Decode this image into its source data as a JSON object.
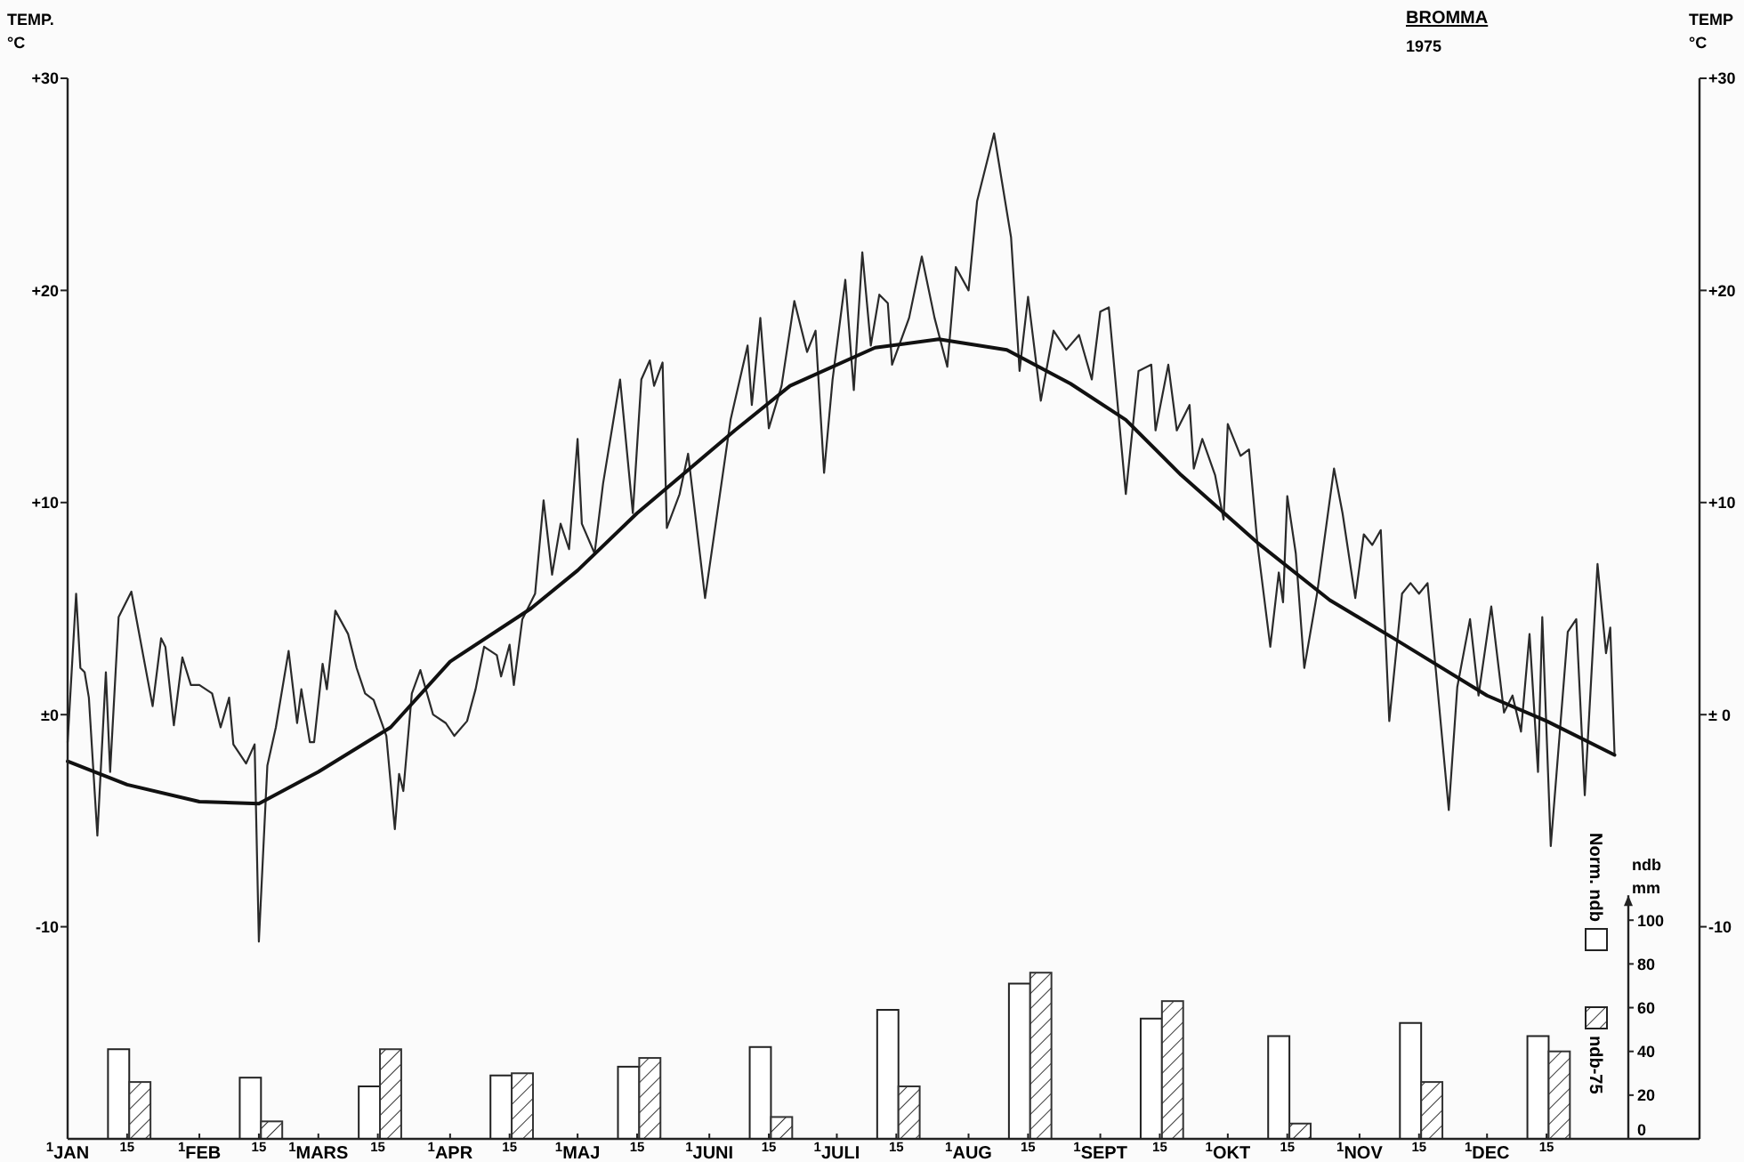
{
  "chart_data": {
    "type": "line",
    "title": "BROMMA",
    "subtitle": "1975",
    "ylabel": "TEMP. °C",
    "y2label": "TEMP °C",
    "y3label": "ndb mm",
    "xlim": [
      "1975-01-01",
      "1976-01-20"
    ],
    "xticks": [
      {
        "value": "1975-01-01",
        "label": "$^{1}$JAN"
      },
      {
        "value": "1975-01-15",
        "label": "$^{15}$"
      },
      {
        "value": "1975-02-01",
        "label": "$^{1}$FEB"
      },
      {
        "value": "1975-02-15",
        "label": "$^{15}$"
      },
      {
        "value": "1975-03-01",
        "label": "$^{1}$MARS"
      },
      {
        "value": "1975-03-15",
        "label": "$^{15}$"
      },
      {
        "value": "1975-04-01",
        "label": "$^{1}$APR"
      },
      {
        "value": "1975-04-15",
        "label": "$^{15}$"
      },
      {
        "value": "1975-05-01",
        "label": "$^{1}$MAJ"
      },
      {
        "value": "1975-05-15",
        "label": "$^{15}$"
      },
      {
        "value": "1975-06-01",
        "label": "$^{1}$JUNI"
      },
      {
        "value": "1975-06-15",
        "label": "$^{15}$"
      },
      {
        "value": "1975-07-01",
        "label": "$^{1}$JULI"
      },
      {
        "value": "1975-07-15",
        "label": "$^{15}$"
      },
      {
        "value": "1975-08-01",
        "label": "$^{1}$AUG"
      },
      {
        "value": "1975-08-15",
        "label": "$^{15}$"
      },
      {
        "value": "1975-09-01",
        "label": "$^{1}$SEPT"
      },
      {
        "value": "1975-09-15",
        "label": "$^{15}$"
      },
      {
        "value": "1975-10-01",
        "label": "$^{1}$OKT"
      },
      {
        "value": "1975-10-15",
        "label": "$^{15}$"
      },
      {
        "value": "1975-11-01",
        "label": "$^{1}$NOV"
      },
      {
        "value": "1975-11-15",
        "label": "$^{15}$"
      },
      {
        "value": "1975-12-01",
        "label": "$^{1}$DEC"
      },
      {
        "value": "1975-12-15",
        "label": "$^{15}$"
      }
    ],
    "ylim": [
      -20,
      30
    ],
    "yticks": [
      {
        "value": -10,
        "label": "-10"
      },
      {
        "value": 0,
        "label": "±0"
      },
      {
        "value": 10,
        "label": "+10"
      },
      {
        "value": 20,
        "label": "+20"
      },
      {
        "value": 30,
        "label": "+30"
      }
    ],
    "y2lim": [
      -20,
      30
    ],
    "y2ticks": [
      {
        "value": -10,
        "label": "-10"
      },
      {
        "value": 0,
        "label": "± 0"
      },
      {
        "value": 10,
        "label": "+10"
      },
      {
        "value": 20,
        "label": "+20"
      },
      {
        "value": 30,
        "label": "+30"
      }
    ],
    "y3lim": [
      0,
      485
    ],
    "y3ticks": [
      0,
      20,
      40,
      60,
      80,
      100
    ],
    "legend": "bottom right",
    "series": [
      {
        "color": "#2a2a2a",
        "x": [
          "1975-01-01",
          "1975-01-03",
          "1975-01-04",
          "1975-01-05",
          "1975-01-06",
          "1975-01-08",
          "1975-01-10",
          "1975-01-11",
          "1975-01-13",
          "1975-01-16",
          "1975-01-21",
          "1975-01-23",
          "1975-01-24",
          "1975-01-26",
          "1975-01-28",
          "1975-01-30",
          "1975-02-01",
          "1975-02-04",
          "1975-02-06",
          "1975-02-08",
          "1975-02-09",
          "1975-02-12",
          "1975-02-14",
          "1975-02-15",
          "1975-02-17",
          "1975-02-19",
          "1975-02-22",
          "1975-02-24",
          "1975-02-25",
          "1975-02-27",
          "1975-02-28",
          "1975-03-02",
          "1975-03-03",
          "1975-03-05",
          "1975-03-08",
          "1975-03-10",
          "1975-03-12",
          "1975-03-14",
          "1975-03-17",
          "1975-03-19",
          "1975-03-20",
          "1975-03-21",
          "1975-03-23",
          "1975-03-25",
          "1975-03-28",
          "1975-03-31",
          "1975-04-02",
          "1975-04-05",
          "1975-04-07",
          "1975-04-09",
          "1975-04-12",
          "1975-04-13",
          "1975-04-15",
          "1975-04-16",
          "1975-04-18",
          "1975-04-21",
          "1975-04-23",
          "1975-04-25",
          "1975-04-27",
          "1975-04-29",
          "1975-05-01",
          "1975-05-02",
          "1975-05-05",
          "1975-05-07",
          "1975-05-11",
          "1975-05-14",
          "1975-05-16",
          "1975-05-18",
          "1975-05-19",
          "1975-05-21",
          "1975-05-22",
          "1975-05-25",
          "1975-05-27",
          "1975-05-31",
          "1975-06-06",
          "1975-06-10",
          "1975-06-11",
          "1975-06-13",
          "1975-06-15",
          "1975-06-18",
          "1975-06-21",
          "1975-06-24",
          "1975-06-26",
          "1975-06-28",
          "1975-06-30",
          "1975-07-03",
          "1975-07-05",
          "1975-07-07",
          "1975-07-09",
          "1975-07-11",
          "1975-07-13",
          "1975-07-14",
          "1975-07-18",
          "1975-07-21",
          "1975-07-24",
          "1975-07-27",
          "1975-07-29",
          "1975-08-01",
          "1975-08-03",
          "1975-08-07",
          "1975-08-11",
          "1975-08-13",
          "1975-08-15",
          "1975-08-18",
          "1975-08-21",
          "1975-08-24",
          "1975-08-27",
          "1975-08-30",
          "1975-09-01",
          "1975-09-03",
          "1975-09-07",
          "1975-09-10",
          "1975-09-13",
          "1975-09-14",
          "1975-09-17",
          "1975-09-19",
          "1975-09-22",
          "1975-09-23",
          "1975-09-25",
          "1975-09-28",
          "1975-09-30",
          "1975-10-01",
          "1975-10-04",
          "1975-10-06",
          "1975-10-08",
          "1975-10-11",
          "1975-10-13",
          "1975-10-14",
          "1975-10-15",
          "1975-10-17",
          "1975-10-19",
          "1975-10-22",
          "1975-10-26",
          "1975-10-28",
          "1975-10-31",
          "1975-11-02",
          "1975-11-04",
          "1975-11-06",
          "1975-11-08",
          "1975-11-11",
          "1975-11-13",
          "1975-11-15",
          "1975-11-17",
          "1975-11-19",
          "1975-11-22",
          "1975-11-24",
          "1975-11-27",
          "1975-11-29",
          "1975-12-02",
          "1975-12-05",
          "1975-12-07",
          "1975-12-09",
          "1975-12-11",
          "1975-12-13",
          "1975-12-14",
          "1975-12-16",
          "1975-12-20",
          "1975-12-22",
          "1975-12-24",
          "1975-12-27",
          "1975-12-29",
          "1975-12-30",
          "1975-12-31"
        ],
        "values": [
          -1.3,
          5.7,
          2.2,
          2.0,
          0.8,
          -5.7,
          2.0,
          -2.7,
          4.6,
          5.8,
          0.4,
          3.6,
          3.2,
          -0.5,
          2.7,
          1.4,
          1.4,
          1.0,
          -0.6,
          0.8,
          -1.4,
          -2.3,
          -1.4,
          -10.7,
          -2.4,
          -0.6,
          3.0,
          -0.4,
          1.2,
          -1.3,
          -1.3,
          2.4,
          1.2,
          4.9,
          3.8,
          2.2,
          1.0,
          0.7,
          -1.0,
          -5.4,
          -2.8,
          -3.6,
          1.0,
          2.1,
          0.0,
          -0.4,
          -1.0,
          -0.3,
          1.2,
          3.2,
          2.8,
          1.8,
          3.3,
          1.4,
          4.5,
          5.7,
          10.1,
          6.6,
          9.0,
          7.8,
          13.0,
          9.0,
          7.6,
          10.9,
          15.8,
          9.5,
          15.8,
          16.7,
          15.5,
          16.6,
          8.8,
          10.4,
          12.3,
          5.5,
          13.9,
          17.4,
          14.6,
          18.7,
          13.5,
          15.5,
          19.5,
          17.1,
          18.1,
          11.4,
          15.8,
          20.5,
          15.3,
          21.8,
          17.4,
          19.8,
          19.4,
          16.5,
          18.7,
          21.6,
          18.7,
          16.4,
          21.1,
          20.0,
          24.2,
          27.4,
          22.5,
          16.2,
          19.7,
          14.8,
          18.1,
          17.2,
          17.9,
          15.8,
          19.0,
          19.2,
          10.4,
          16.2,
          16.5,
          13.4,
          16.5,
          13.4,
          14.6,
          11.6,
          13.0,
          11.3,
          9.2,
          13.7,
          12.2,
          12.5,
          8.0,
          3.2,
          6.7,
          5.3,
          10.3,
          7.6,
          2.2,
          5.7,
          11.6,
          9.5,
          5.5,
          8.5,
          8.0,
          8.7,
          -0.3,
          5.7,
          6.2,
          5.7,
          6.2,
          2.0,
          -4.5,
          1.3,
          4.5,
          0.9,
          5.1,
          0.1,
          0.9,
          -0.8,
          3.8,
          -2.7,
          4.6,
          -6.2,
          3.9,
          4.5,
          -3.8,
          7.1,
          2.9,
          4.1,
          -1.8
        ]
      },
      {
        "type": "line",
        "color": "#111111",
        "x": [
          "1975-01-01",
          "1975-01-15",
          "1975-02-01",
          "1975-02-15",
          "1975-03-01",
          "1975-03-18",
          "1975-04-01",
          "1975-04-20",
          "1975-05-01",
          "1975-05-15",
          "1975-06-07",
          "1975-06-20",
          "1975-07-10",
          "1975-07-25",
          "1975-08-10",
          "1975-08-25",
          "1975-09-07",
          "1975-09-20",
          "1975-10-08",
          "1975-10-25",
          "1975-11-09",
          "1975-12-01",
          "1975-12-15",
          "1975-12-31"
        ],
        "values": [
          -2.2,
          -3.3,
          -4.1,
          -4.2,
          -2.7,
          -0.6,
          2.5,
          5.0,
          6.8,
          9.5,
          13.4,
          15.5,
          17.3,
          17.7,
          17.2,
          15.6,
          13.9,
          11.3,
          8.1,
          5.4,
          3.6,
          0.9,
          -0.3,
          -1.9
        ]
      },
      {
        "type": "bar",
        "axis": "y3",
        "name": "Norm. ndb",
        "color": "#ffffff",
        "x": [
          "1975-01-13",
          "1975-02-13",
          "1975-03-13",
          "1975-04-13",
          "1975-05-13",
          "1975-06-13",
          "1975-07-13",
          "1975-08-13",
          "1975-09-13",
          "1975-10-13",
          "1975-11-13",
          "1975-12-13"
        ],
        "values": [
          41,
          28,
          24,
          29,
          33,
          42,
          59,
          71,
          55,
          47,
          53,
          47
        ]
      },
      {
        "type": "bar",
        "axis": "y3",
        "name": "ndb-75",
        "color": "#333333",
        "x": [
          "1975-01-18",
          "1975-02-18",
          "1975-03-18",
          "1975-04-18",
          "1975-05-18",
          "1975-06-18",
          "1975-07-18",
          "1975-08-18",
          "1975-09-18",
          "1975-10-18",
          "1975-11-18",
          "1975-12-18"
        ],
        "values": [
          26,
          8,
          41,
          30,
          37,
          10,
          24,
          76,
          63,
          7,
          26,
          40
        ]
      }
    ]
  }
}
